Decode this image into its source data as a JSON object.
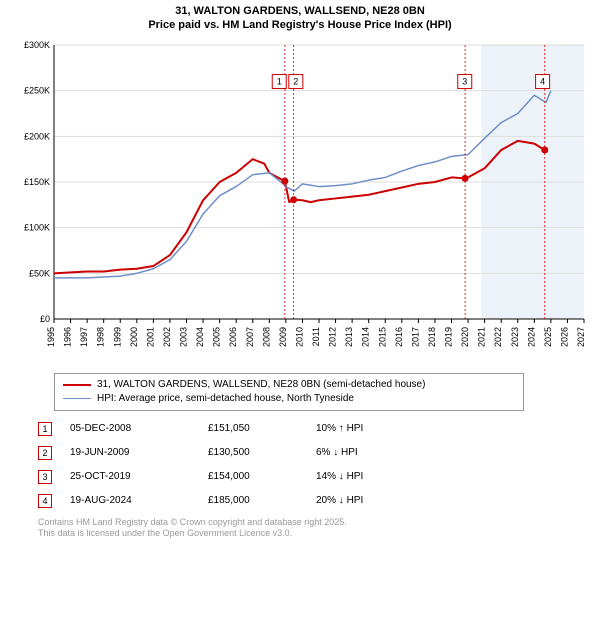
{
  "title_line1": "31, WALTON GARDENS, WALLSEND, NE28 0BN",
  "title_line2": "Price paid vs. HM Land Registry's House Price Index (HPI)",
  "chart": {
    "type": "line",
    "x_start": 1995,
    "x_end": 2027,
    "x_ticks": [
      1995,
      1996,
      1997,
      1998,
      1999,
      2000,
      2001,
      2002,
      2003,
      2004,
      2005,
      2006,
      2007,
      2008,
      2009,
      2010,
      2011,
      2012,
      2013,
      2014,
      2015,
      2016,
      2017,
      2018,
      2019,
      2020,
      2021,
      2022,
      2023,
      2024,
      2025,
      2026,
      2027
    ],
    "y_min": 0,
    "y_max": 300000,
    "y_ticks": [
      0,
      50000,
      100000,
      150000,
      200000,
      250000,
      300000
    ],
    "y_tick_labels": [
      "£0",
      "£50K",
      "£100K",
      "£150K",
      "£200K",
      "£250K",
      "£300K"
    ],
    "grid_color": "#dddddd",
    "axis_color": "#000000",
    "background_color": "#ffffff",
    "shade_color": "#edf2f8",
    "shade_from_x": 2020.8,
    "shade_to_x": 2027,
    "tick_fontsize": 9,
    "series": [
      {
        "name": "red",
        "color": "#cc0000",
        "width": 2,
        "points": [
          [
            1995,
            50000
          ],
          [
            1996,
            51000
          ],
          [
            1997,
            52000
          ],
          [
            1998,
            52000
          ],
          [
            1999,
            54000
          ],
          [
            2000,
            55000
          ],
          [
            2001,
            58000
          ],
          [
            2002,
            70000
          ],
          [
            2003,
            95000
          ],
          [
            2004,
            130000
          ],
          [
            2005,
            150000
          ],
          [
            2006,
            160000
          ],
          [
            2007,
            175000
          ],
          [
            2007.7,
            170000
          ],
          [
            2008,
            160000
          ],
          [
            2008.5,
            155000
          ],
          [
            2008.94,
            151050
          ],
          [
            2009.2,
            128000
          ],
          [
            2009.47,
            130500
          ],
          [
            2010,
            130000
          ],
          [
            2010.5,
            128000
          ],
          [
            2011,
            130000
          ],
          [
            2012,
            132000
          ],
          [
            2013,
            134000
          ],
          [
            2014,
            136000
          ],
          [
            2015,
            140000
          ],
          [
            2016,
            144000
          ],
          [
            2017,
            148000
          ],
          [
            2018,
            150000
          ],
          [
            2019,
            155000
          ],
          [
            2019.82,
            154000
          ],
          [
            2020,
            155000
          ],
          [
            2021,
            165000
          ],
          [
            2022,
            185000
          ],
          [
            2023,
            195000
          ],
          [
            2024,
            192000
          ],
          [
            2024.63,
            185000
          ]
        ]
      },
      {
        "name": "blue",
        "color": "#6d8fc7",
        "width": 1.5,
        "points": [
          [
            1995,
            45000
          ],
          [
            1996,
            45000
          ],
          [
            1997,
            45000
          ],
          [
            1998,
            46000
          ],
          [
            1999,
            47000
          ],
          [
            2000,
            50000
          ],
          [
            2001,
            55000
          ],
          [
            2002,
            65000
          ],
          [
            2003,
            85000
          ],
          [
            2004,
            115000
          ],
          [
            2005,
            135000
          ],
          [
            2006,
            145000
          ],
          [
            2007,
            158000
          ],
          [
            2008,
            160000
          ],
          [
            2008.7,
            150000
          ],
          [
            2009,
            145000
          ],
          [
            2009.5,
            140000
          ],
          [
            2010,
            148000
          ],
          [
            2011,
            145000
          ],
          [
            2012,
            146000
          ],
          [
            2013,
            148000
          ],
          [
            2014,
            152000
          ],
          [
            2015,
            155000
          ],
          [
            2016,
            162000
          ],
          [
            2017,
            168000
          ],
          [
            2018,
            172000
          ],
          [
            2019,
            178000
          ],
          [
            2020,
            180000
          ],
          [
            2021,
            198000
          ],
          [
            2022,
            215000
          ],
          [
            2023,
            225000
          ],
          [
            2024,
            245000
          ],
          [
            2024.7,
            237000
          ],
          [
            2025,
            250000
          ]
        ]
      }
    ],
    "markers": [
      {
        "n": "1",
        "x": 2008.94,
        "y": 151050,
        "label_x": 2008.6,
        "label_y": 260000,
        "color": "#cc0000"
      },
      {
        "n": "2",
        "x": 2009.47,
        "y": 130500,
        "label_x": 2009.6,
        "label_y": 260000,
        "color": "#cc0000"
      },
      {
        "n": "3",
        "x": 2019.82,
        "y": 154000,
        "label_x": 2019.8,
        "label_y": 260000,
        "color": "#cc0000"
      },
      {
        "n": "4",
        "x": 2024.63,
        "y": 185000,
        "label_x": 2024.5,
        "label_y": 260000,
        "color": "#cc0000"
      }
    ]
  },
  "legend": [
    {
      "color": "#cc0000",
      "width": 2,
      "text": "31, WALTON GARDENS, WALLSEND, NE28 0BN (semi-detached house)"
    },
    {
      "color": "#6d8fc7",
      "width": 1.5,
      "text": "HPI: Average price, semi-detached house, North Tyneside"
    }
  ],
  "rows": [
    {
      "n": "1",
      "date": "05-DEC-2008",
      "price": "£151,050",
      "diff": "10% ↑ HPI",
      "color": "#cc0000"
    },
    {
      "n": "2",
      "date": "19-JUN-2009",
      "price": "£130,500",
      "diff": "6% ↓ HPI",
      "color": "#cc0000"
    },
    {
      "n": "3",
      "date": "25-OCT-2019",
      "price": "£154,000",
      "diff": "14% ↓ HPI",
      "color": "#cc0000"
    },
    {
      "n": "4",
      "date": "19-AUG-2024",
      "price": "£185,000",
      "diff": "20% ↓ HPI",
      "color": "#cc0000"
    }
  ],
  "footer_line1": "Contains HM Land Registry data © Crown copyright and database right 2025.",
  "footer_line2": "This data is licensed under the Open Government Licence v3.0."
}
